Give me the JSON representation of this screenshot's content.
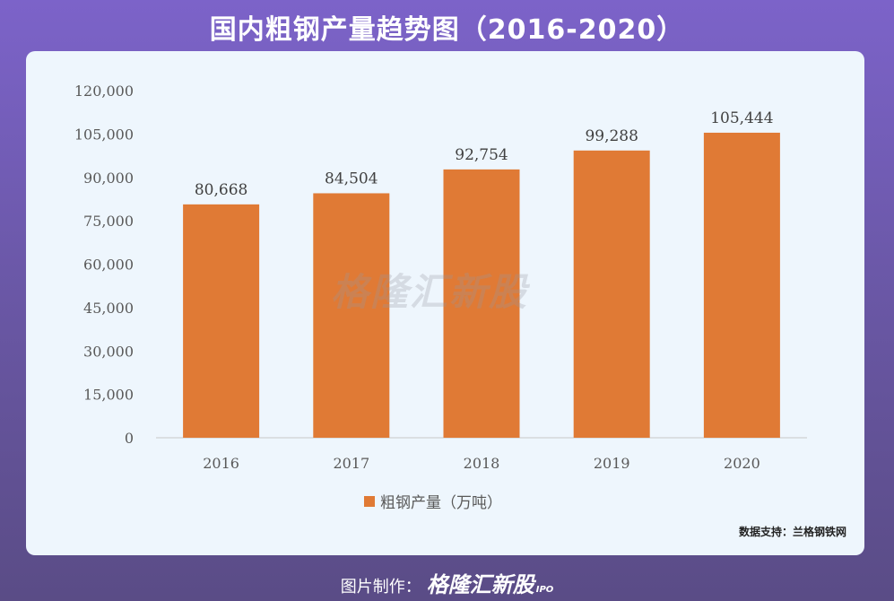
{
  "title": "国内粗钢产量趋势图（2016-2020）",
  "chart_data": {
    "type": "bar",
    "categories": [
      "2016",
      "2017",
      "2018",
      "2019",
      "2020"
    ],
    "series": [
      {
        "name": "粗钢产量（万吨）",
        "values": [
          80668,
          84504,
          92754,
          99288,
          105444
        ]
      }
    ],
    "data_labels": [
      "80,668",
      "84,504",
      "92,754",
      "99,288",
      "105,444"
    ],
    "y_ticks": [
      "0",
      "15,000",
      "30,000",
      "45,000",
      "60,000",
      "75,000",
      "90,000",
      "105,000",
      "120,000"
    ],
    "ylim": [
      0,
      120000
    ],
    "xlabel": "",
    "ylabel": "",
    "grid": false,
    "legend_position": "bottom",
    "bar_color": "#e07a35"
  },
  "watermark": "格隆汇新股",
  "source": "数据支持：兰格钢铁网",
  "footer": {
    "label": "图片制作：",
    "logo": "格隆汇新股",
    "logo_sub": "IPO"
  }
}
